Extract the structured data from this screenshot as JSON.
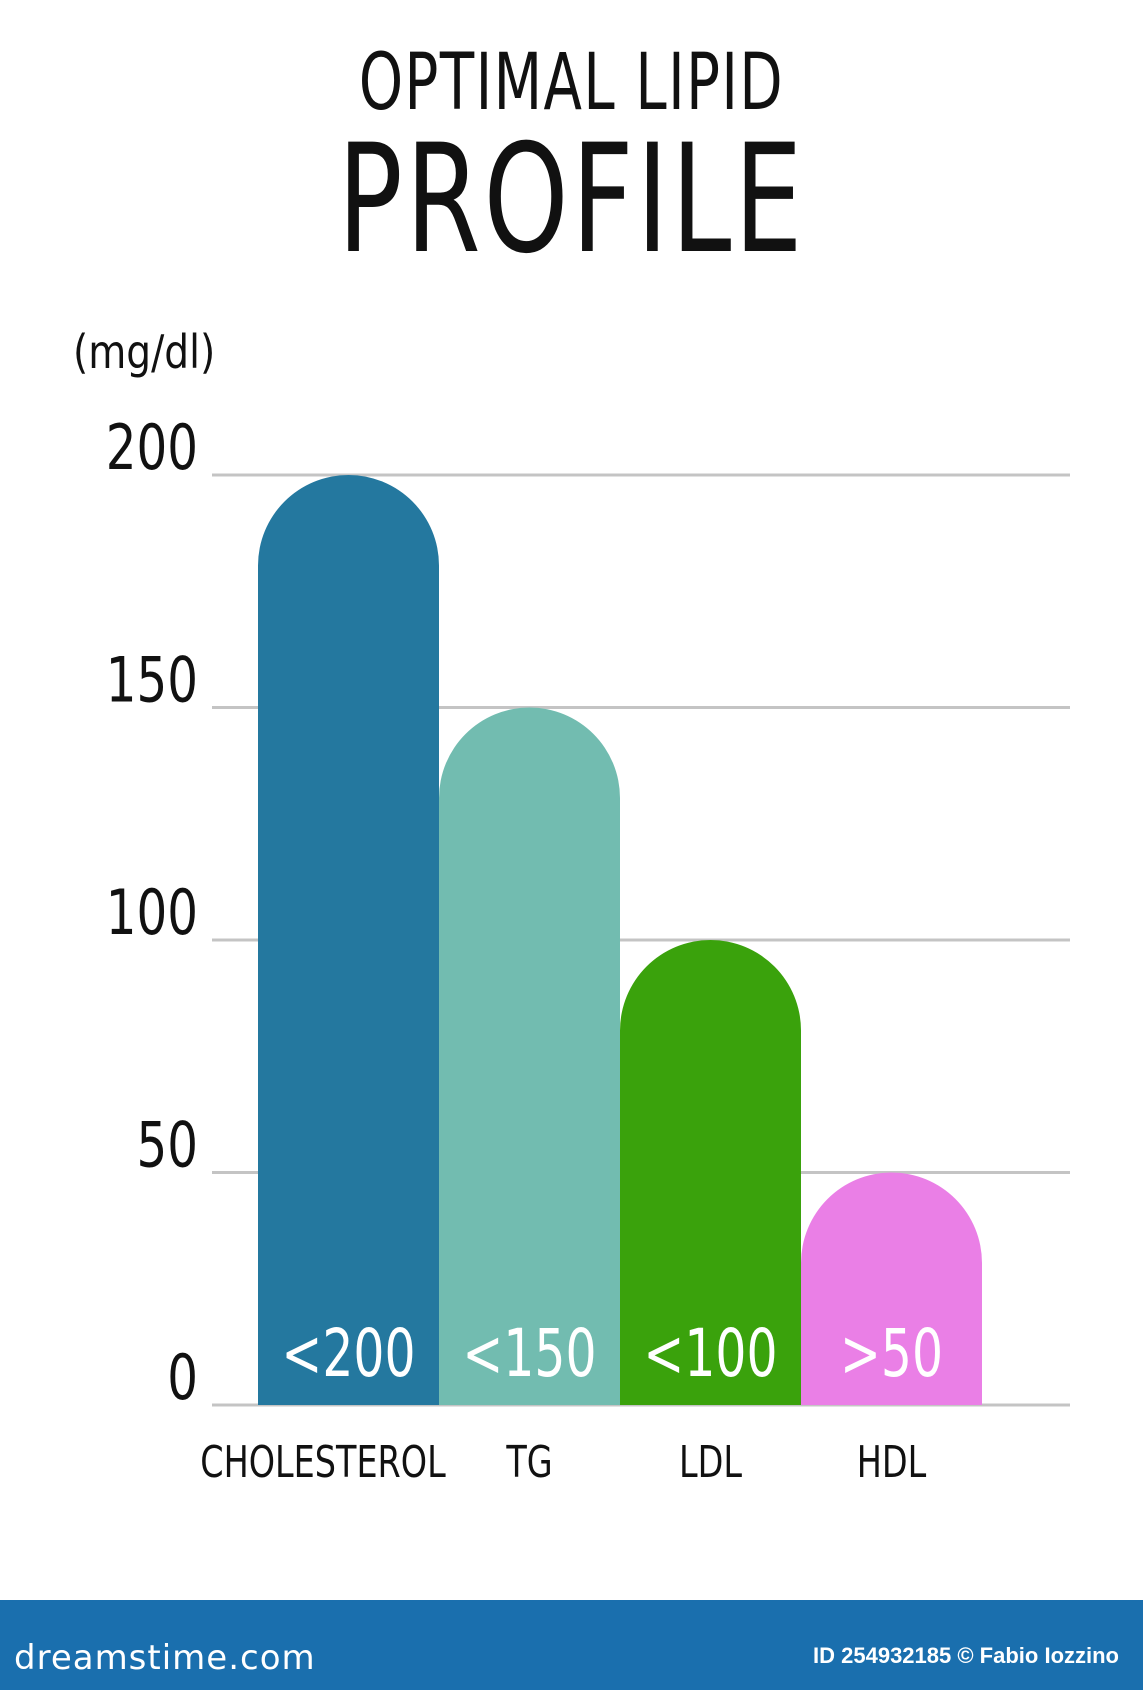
{
  "chart_data": {
    "type": "bar",
    "title": "OPTIMAL LIPID",
    "subtitle": "PROFILE",
    "ylabel": "(mg/dl)",
    "ylim": [
      0,
      200
    ],
    "yticks": [
      0,
      50,
      100,
      150,
      200
    ],
    "grid": true,
    "categories": [
      "CHOLESTEROL",
      "TG",
      "LDL",
      "HDL"
    ],
    "values": [
      200,
      150,
      100,
      50
    ],
    "data_labels": [
      "<200",
      "<150",
      "<100",
      ">50"
    ],
    "colors": [
      "#24789f",
      "#72bcb0",
      "#3aa20c",
      "#ea7fe6"
    ]
  },
  "footer": {
    "brand": "dreamstime.com",
    "credit": "ID 254932185 © Fabio Iozzino",
    "background": "#1a6fae"
  }
}
